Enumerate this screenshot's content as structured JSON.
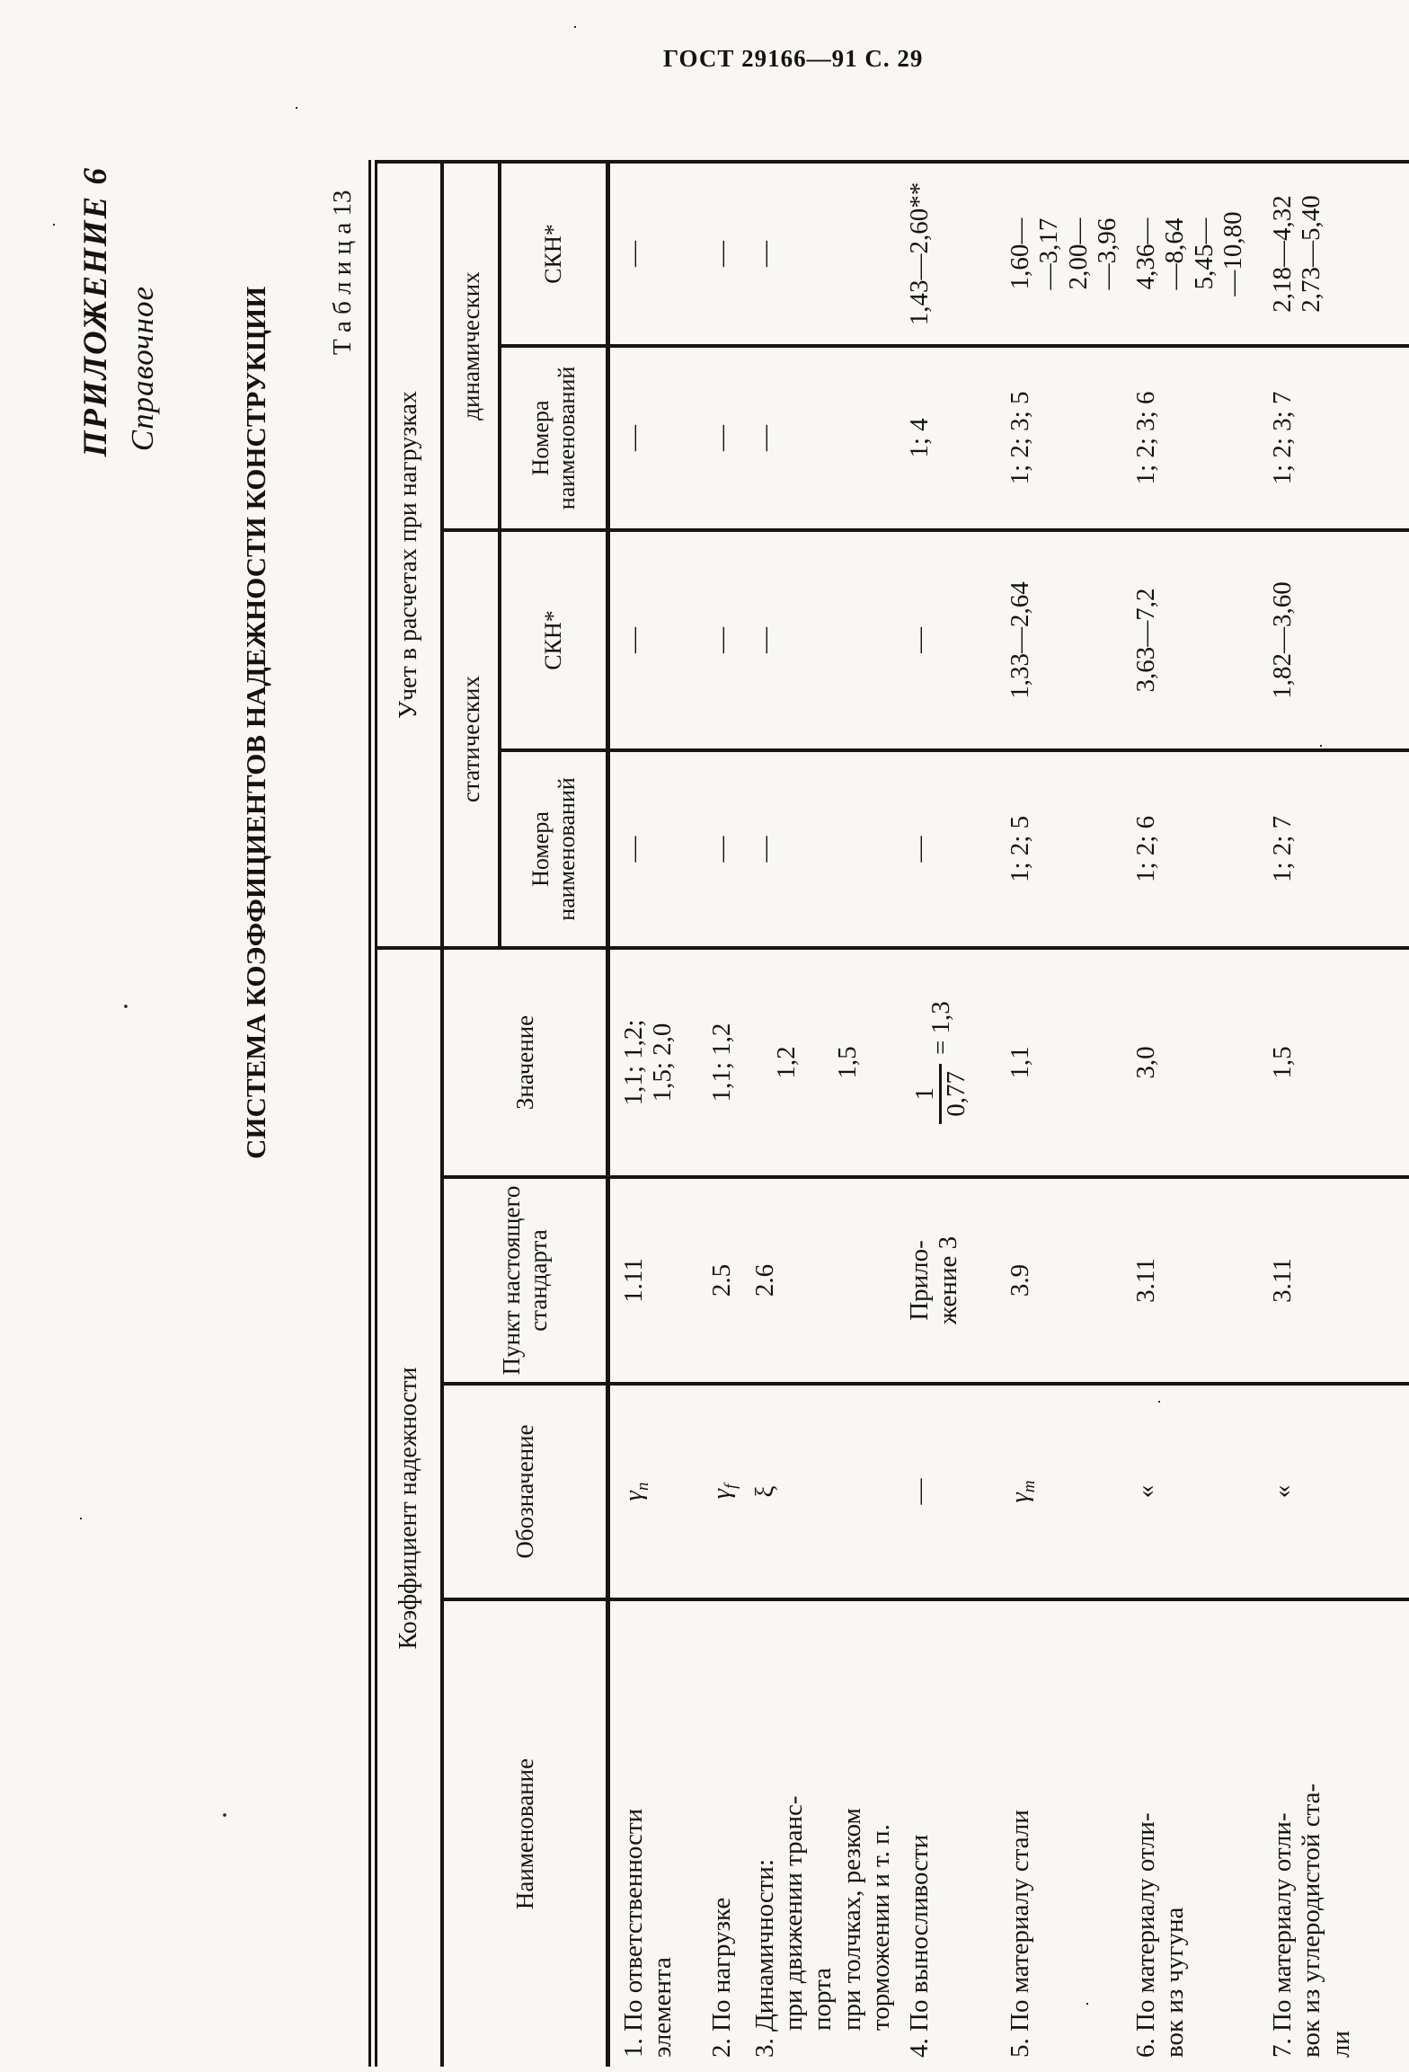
{
  "page_header": "ГОСТ 29166—91 С. 29",
  "appendix": {
    "line1": "ПРИЛОЖЕНИЕ 6",
    "line2": "Справочное"
  },
  "title": "СИСТЕМА КОЭФФИЦИЕНТОВ НАДЕЖНОСТИ КОНСТРУКЦИИ",
  "table_label": "Т а б л и ц а  13",
  "colors": {
    "ink": "#181512",
    "paper": "#f8f7f3"
  },
  "table": {
    "header": {
      "group_coefficient": "Коэффициент надежности",
      "group_loads": "Учет в расчетах при нагрузках",
      "col_name": "Наименование",
      "col_symbol": "Обозначение",
      "col_clause": "Пункт настоящего стандарта",
      "col_value": "Значение",
      "static_label": "статических",
      "dynamic_label": "динамических",
      "numbers_label": "Номера наименований",
      "skn_label": "СКН*"
    },
    "rows": [
      {
        "name": [
          "1. По ответственности",
          "элемента"
        ],
        "symbol": {
          "sym": "γ",
          "sub": "n"
        },
        "clause": [
          "1.11"
        ],
        "value": {
          "lines": [
            "1,1; 1,2;",
            "1,5; 2,0"
          ]
        },
        "num_static": "—",
        "skn_static": "—",
        "num_dynamic": "—",
        "skn_dynamic": [
          "—"
        ]
      },
      {
        "name": [
          "2. По нагрузке"
        ],
        "symbol": {
          "sym": "γ",
          "sub": "f"
        },
        "clause": [
          "2.5"
        ],
        "value": {
          "lines": [
            "1,1; 1,2"
          ]
        },
        "num_static": "—",
        "skn_static": "—",
        "num_dynamic": "—",
        "skn_dynamic": [
          "—"
        ]
      },
      {
        "name": [
          "3. Динамичности:",
          "~при движении транс-",
          "~порта",
          "~при толчках, резком",
          "~торможении и т. п."
        ],
        "symbol": {
          "text": "ξ"
        },
        "clause": [
          "2.6"
        ],
        "value": {
          "stacked": [
            "1,2",
            "1,5"
          ]
        },
        "num_static": "—",
        "skn_static": "—",
        "num_dynamic": "—",
        "skn_dynamic": [
          "—"
        ]
      },
      {
        "name": [
          "4. По выносливости"
        ],
        "symbol": {
          "text": "—"
        },
        "clause": [
          "Прило-",
          "жение 3"
        ],
        "value": {
          "fraction": {
            "num": "1",
            "den": "0,77",
            "eq": "= 1,3"
          }
        },
        "num_static": "—",
        "skn_static": "—",
        "num_dynamic": "1; 4",
        "skn_dynamic": [
          "1,43—2,60**"
        ]
      },
      {
        "name": [
          "5. По материалу стали"
        ],
        "symbol": {
          "sym": "γ",
          "sub": "m"
        },
        "clause": [
          "3.9"
        ],
        "value": {
          "lines": [
            "1,1"
          ]
        },
        "num_static": "1; 2; 5",
        "skn_static": "1,33—2,64",
        "num_dynamic": "1; 2; 3; 5",
        "skn_dynamic": [
          "1,60—",
          "—3,17",
          "2,00—",
          "—3,96"
        ]
      },
      {
        "name": [
          "6. По материалу отли-",
          "вок из чугуна"
        ],
        "symbol": {
          "text": "«"
        },
        "clause": [
          "3.11"
        ],
        "value": {
          "lines": [
            "3,0"
          ]
        },
        "num_static": "1; 2; 6",
        "skn_static": "3,63—7,2",
        "num_dynamic": "1; 2; 3; 6",
        "skn_dynamic": [
          "4,36—",
          "—8,64",
          "5,45—",
          "—10,80"
        ]
      },
      {
        "name": [
          "7. По материалу отли-",
          "вок из углеродистой ста-",
          "ли"
        ],
        "symbol": {
          "text": "«"
        },
        "clause": [
          "3.11"
        ],
        "value": {
          "lines": [
            "1,5"
          ]
        },
        "num_static": "1; 2; 7",
        "skn_static": "1,82—3,60",
        "num_dynamic": "1; 2; 3; 7",
        "skn_dynamic": [
          "2,18—4,32",
          "2,73—5,40"
        ]
      }
    ]
  }
}
